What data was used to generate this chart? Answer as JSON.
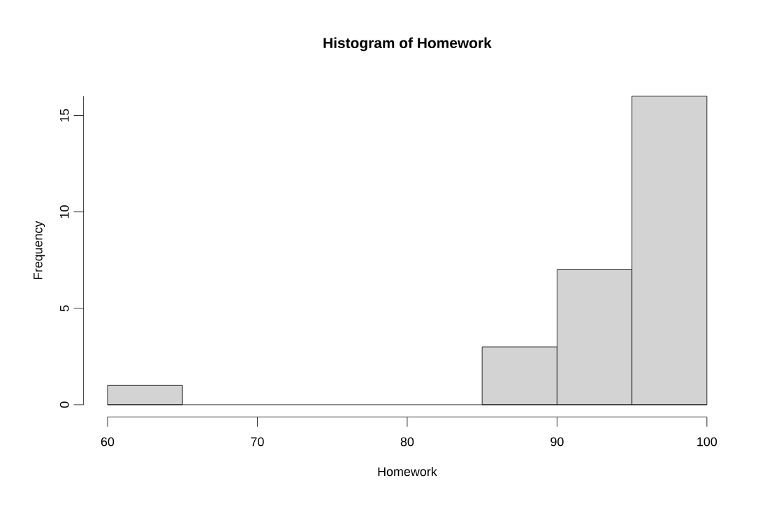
{
  "chart_data": {
    "type": "histogram",
    "title": "Histogram of Homework",
    "xlabel": "Homework",
    "ylabel": "Frequency",
    "bins": [
      60,
      65,
      70,
      75,
      80,
      85,
      90,
      95,
      100
    ],
    "values": [
      1,
      0,
      0,
      0,
      0,
      3,
      7,
      16
    ],
    "color": "#d3d3d3",
    "xlim": [
      60,
      100
    ],
    "ylim": [
      0,
      16
    ],
    "xticks": [
      60,
      70,
      80,
      90,
      100
    ],
    "yticks": [
      0,
      5,
      10,
      15
    ]
  }
}
